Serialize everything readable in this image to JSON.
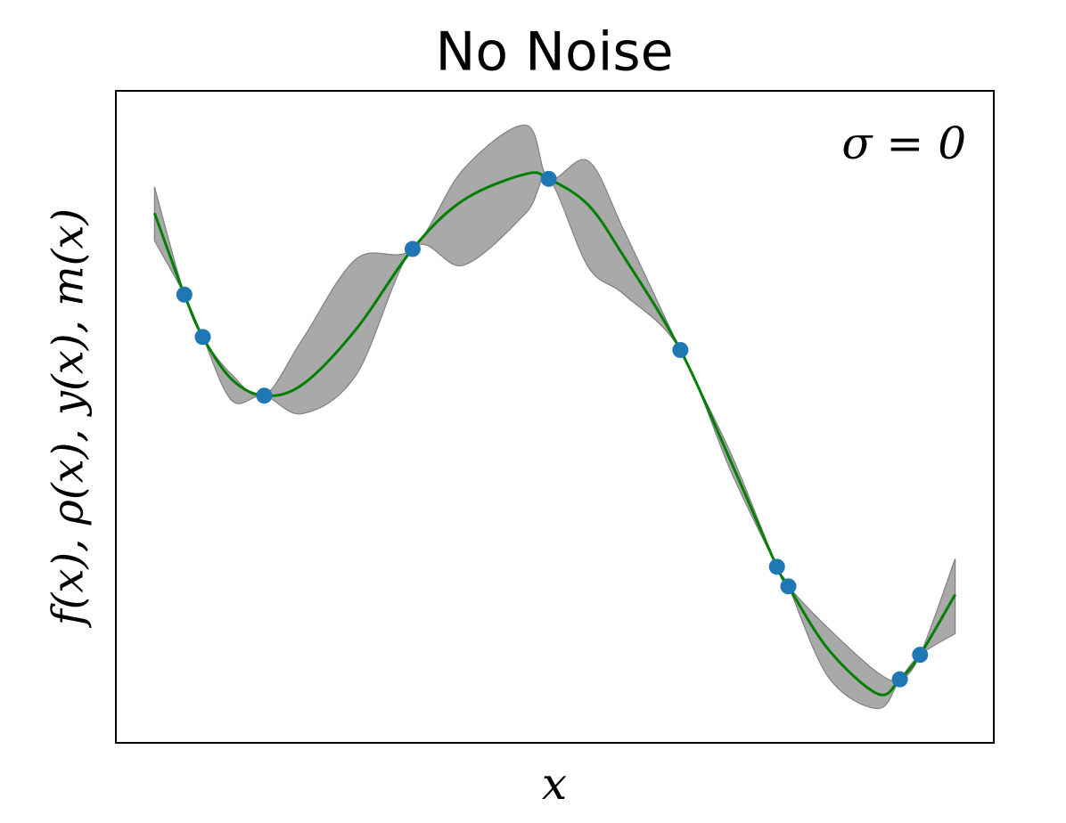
{
  "chart_data": {
    "type": "line",
    "title": "No Noise",
    "xlabel": "x",
    "ylabel": "f(x), ρ(x), y(x), m(x)",
    "annotation": "σ = 0",
    "xlim": [
      0,
      10
    ],
    "ylim": [
      -2,
      2
    ],
    "x": [
      0.44,
      0.78,
      0.99,
      1.32,
      1.69,
      2.13,
      2.74,
      3.38,
      3.96,
      4.67,
      4.93,
      5.38,
      5.79,
      6.43,
      7.01,
      7.53,
      7.66,
      8.12,
      8.68,
      8.93,
      9.16,
      9.56
    ],
    "band": {
      "color": "#a9a9a9",
      "upper": [
        1.41,
        0.75,
        0.49,
        0.26,
        0.13,
        0.48,
        0.97,
        1.03,
        1.52,
        1.79,
        1.46,
        1.57,
        1.14,
        0.41,
        -0.23,
        -0.92,
        -1.04,
        -1.3,
        -1.57,
        -1.61,
        -1.46,
        -0.87
      ],
      "lower": [
        1.08,
        0.75,
        0.49,
        0.1,
        0.13,
        0.02,
        0.26,
        1.03,
        0.93,
        1.25,
        1.46,
        0.92,
        0.75,
        0.41,
        -0.34,
        -0.92,
        -1.04,
        -1.6,
        -1.79,
        -1.61,
        -1.46,
        -1.33
      ]
    },
    "mean": {
      "color": "#007f00",
      "values": [
        1.25,
        0.75,
        0.49,
        0.23,
        0.13,
        0.2,
        0.54,
        1.03,
        1.33,
        1.49,
        1.46,
        1.3,
        0.98,
        0.41,
        -0.28,
        -0.92,
        -1.04,
        -1.43,
        -1.7,
        -1.61,
        -1.46,
        -1.09
      ]
    },
    "points": {
      "color": "#1f77b4",
      "x": [
        0.78,
        0.99,
        1.69,
        3.38,
        4.93,
        6.43,
        7.53,
        7.66,
        8.93,
        9.16
      ],
      "y": [
        0.75,
        0.49,
        0.13,
        1.03,
        1.46,
        0.41,
        -0.92,
        -1.04,
        -1.61,
        -1.46
      ]
    }
  }
}
